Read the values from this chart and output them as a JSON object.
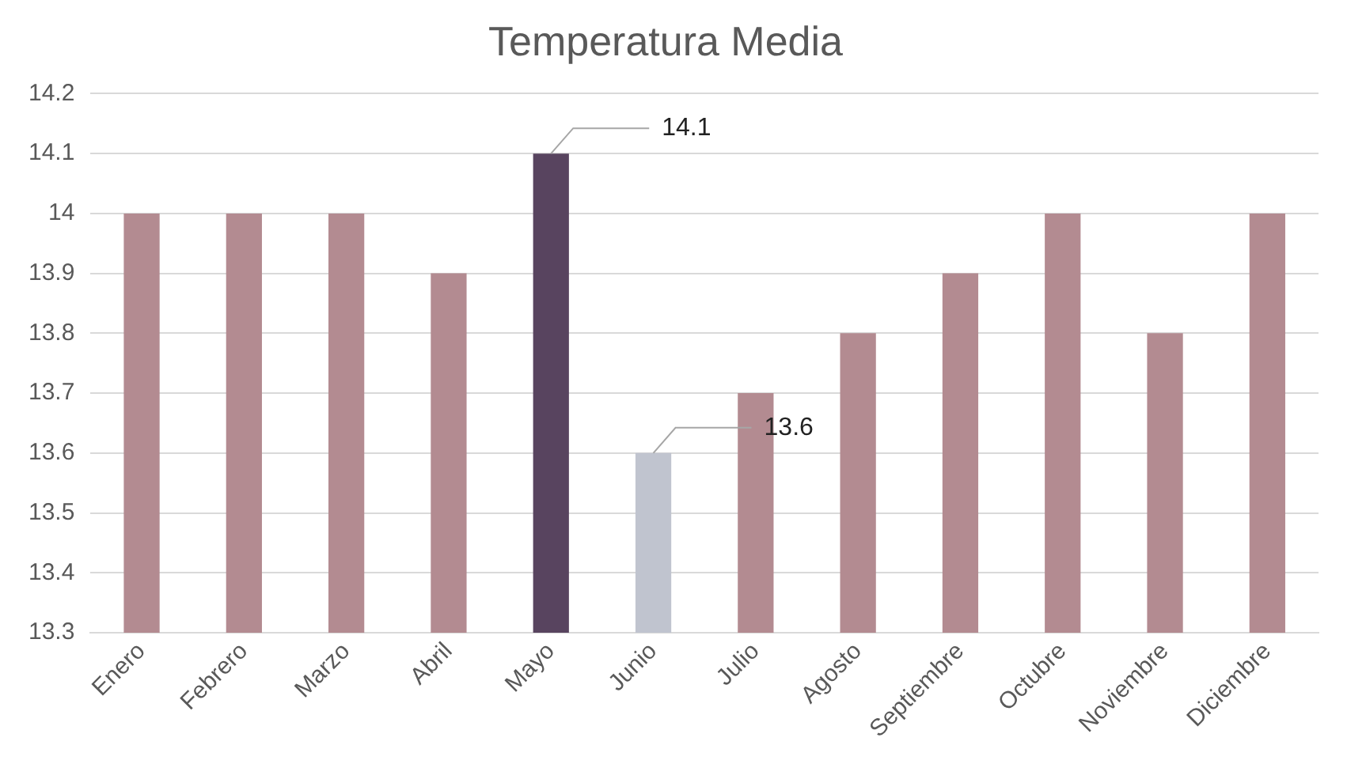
{
  "chart_data": {
    "type": "bar",
    "title": "Temperatura Media",
    "categories": [
      "Enero",
      "Febrero",
      "Marzo",
      "Abril",
      "Mayo",
      "Junio",
      "Julio",
      "Agosto",
      "Septiembre",
      "Octubre",
      "Noviembre",
      "Diciembre"
    ],
    "values": [
      14,
      14,
      14,
      13.9,
      14.1,
      13.6,
      13.7,
      13.8,
      13.9,
      14,
      13.8,
      14
    ],
    "colors": [
      "#b38b91",
      "#b38b91",
      "#b38b91",
      "#b38b91",
      "#58445f",
      "#c0c4cf",
      "#b38b91",
      "#b38b91",
      "#b38b91",
      "#b38b91",
      "#b38b91",
      "#b38b91"
    ],
    "value_labels": [
      null,
      null,
      null,
      null,
      "14.1",
      "13.6",
      null,
      null,
      null,
      null,
      null,
      null
    ],
    "ylim": [
      13.3,
      14.2
    ],
    "yticks": [
      13.3,
      13.4,
      13.5,
      13.6,
      13.7,
      13.8,
      13.9,
      14,
      14.1,
      14.2
    ],
    "grid": "y"
  }
}
